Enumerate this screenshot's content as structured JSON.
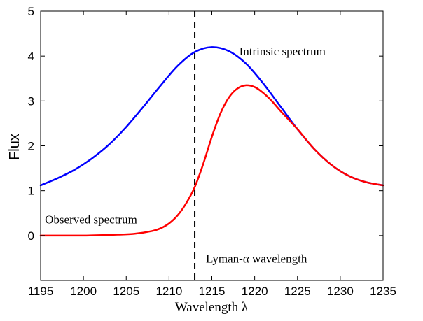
{
  "chart_data": {
    "type": "line",
    "xlabel": "Wavelength λ",
    "ylabel": "Flux",
    "xlim": [
      1195,
      1235
    ],
    "ylim": [
      -1,
      5
    ],
    "xticks": [
      "1195",
      "1200",
      "1205",
      "1210",
      "1215",
      "1220",
      "1225",
      "1230",
      "1235"
    ],
    "yticks": [
      "0",
      "1",
      "2",
      "3",
      "4",
      "5"
    ],
    "grid": false,
    "series": [
      {
        "name": "Intrinsic spectrum",
        "color": "#0000ff",
        "x": [
          1195,
          1197,
          1199,
          1201,
          1203,
          1205,
          1207,
          1209,
          1211,
          1213,
          1215,
          1217,
          1219,
          1221,
          1223,
          1225,
          1227,
          1229,
          1231,
          1233,
          1235
        ],
        "y": [
          1.12,
          1.28,
          1.47,
          1.72,
          2.03,
          2.42,
          2.87,
          3.34,
          3.78,
          4.09,
          4.2,
          4.11,
          3.83,
          3.39,
          2.88,
          2.37,
          1.92,
          1.57,
          1.33,
          1.19,
          1.12
        ]
      },
      {
        "name": "Observed spectrum",
        "color": "#ff0000",
        "x": [
          1195,
          1200,
          1204,
          1206,
          1208,
          1209,
          1210,
          1211,
          1212,
          1213,
          1214,
          1215,
          1216,
          1217,
          1218,
          1219,
          1220,
          1221,
          1222,
          1223,
          1225,
          1227,
          1229,
          1231,
          1233,
          1235
        ],
        "y": [
          0.0,
          0.0,
          0.02,
          0.04,
          0.1,
          0.16,
          0.27,
          0.45,
          0.72,
          1.08,
          1.6,
          2.2,
          2.72,
          3.08,
          3.28,
          3.35,
          3.31,
          3.18,
          3.0,
          2.78,
          2.37,
          1.92,
          1.57,
          1.33,
          1.19,
          1.12
        ]
      }
    ],
    "vline": {
      "x": 1213,
      "style": "dashed",
      "color": "#000000"
    },
    "annotations": [
      {
        "text": "Intrinsic spectrum",
        "x": 1218.2,
        "y": 4.02
      },
      {
        "text": "Observed spectrum",
        "x": 1195.5,
        "y": 0.27
      },
      {
        "text": "Lyman-α wavelength",
        "x": 1214.3,
        "y": -0.6
      }
    ]
  }
}
